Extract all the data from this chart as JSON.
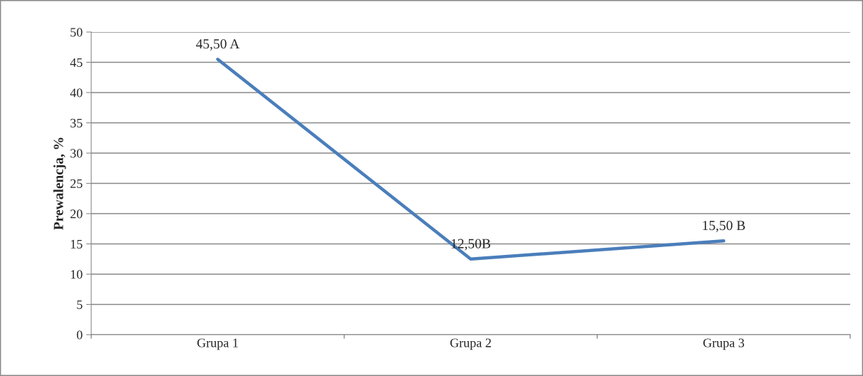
{
  "chart_data": {
    "type": "line",
    "ylabel": "Prewalencja, %",
    "categories": [
      "Grupa 1",
      "Grupa 2",
      "Grupa 3"
    ],
    "series": [
      {
        "color": "#4a7ebb",
        "values": [
          45.5,
          12.5,
          15.5
        ],
        "value_labels": [
          "45,50 A",
          "12,50B",
          "15,50 B"
        ]
      }
    ],
    "ylim": [
      0,
      50
    ],
    "yticks": [
      0,
      5,
      10,
      15,
      20,
      25,
      30,
      35,
      40,
      45,
      50
    ],
    "grid": "y",
    "marker": "none",
    "line_style": "solid"
  }
}
